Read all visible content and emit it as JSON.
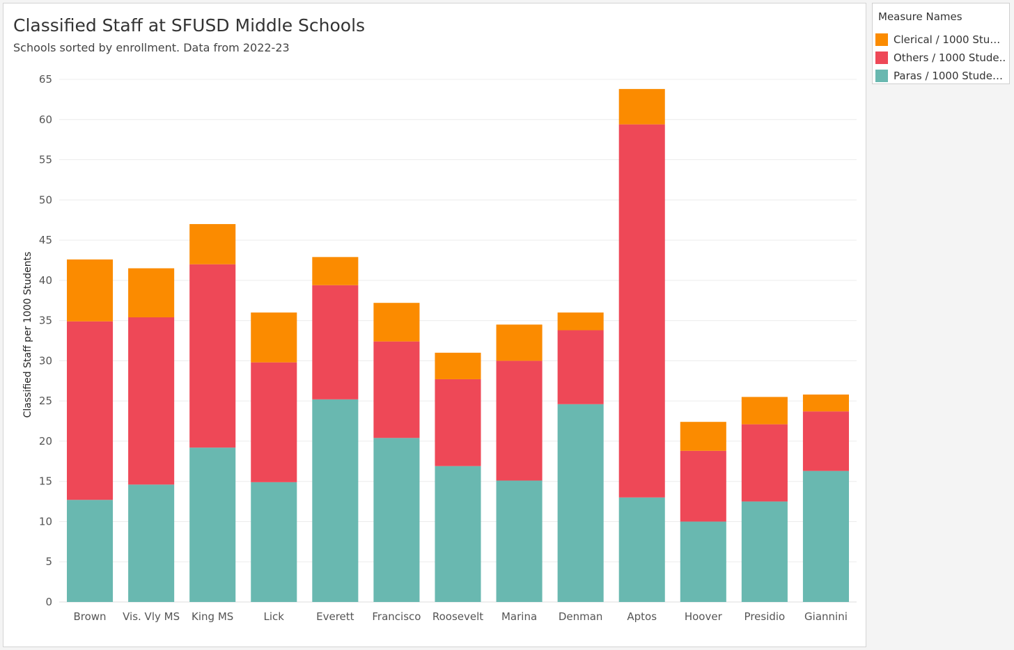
{
  "colors": {
    "clerical": "#fb8b00",
    "others": "#ee4857",
    "paras": "#69b8b0",
    "grid": "#ececec",
    "axis_text": "#555555"
  },
  "chart_data": {
    "type": "bar",
    "stacked": true,
    "title": "Classified Staff at SFUSD Middle Schools",
    "subtitle": "Schools sorted by enrollment. Data from 2022-23",
    "xlabel": "",
    "ylabel": "Classified Staff per 1000 Students",
    "ylim": [
      0,
      65
    ],
    "yticks": [
      0,
      5,
      10,
      15,
      20,
      25,
      30,
      35,
      40,
      45,
      50,
      55,
      60,
      65
    ],
    "grid": true,
    "legend_position": "right",
    "categories": [
      "Brown",
      "Vis. Vly MS",
      "King MS",
      "Lick",
      "Everett",
      "Francisco",
      "Roosevelt",
      "Marina",
      "Denman",
      "Aptos",
      "Hoover",
      "Presidio",
      "Giannini"
    ],
    "series": [
      {
        "name": "Paras / 1000 Students",
        "color_key": "paras",
        "values": [
          12.7,
          14.6,
          19.2,
          14.9,
          25.2,
          20.4,
          16.9,
          15.1,
          24.6,
          13.0,
          10.0,
          12.5,
          16.3
        ]
      },
      {
        "name": "Others / 1000 Students",
        "color_key": "others",
        "values": [
          22.2,
          20.8,
          22.8,
          14.9,
          14.2,
          12.0,
          10.8,
          14.9,
          9.2,
          46.4,
          8.8,
          9.6,
          7.4
        ]
      },
      {
        "name": "Clerical / 1000 Students",
        "color_key": "clerical",
        "values": [
          7.7,
          6.1,
          5.0,
          6.2,
          3.5,
          4.8,
          3.3,
          4.5,
          2.2,
          4.4,
          3.6,
          3.4,
          2.1
        ]
      }
    ]
  },
  "legend": {
    "title": "Measure Names",
    "items": [
      {
        "label": "Clerical / 1000 Stude..",
        "color_key": "clerical"
      },
      {
        "label": "Others / 1000 Stude..",
        "color_key": "others"
      },
      {
        "label": "Paras / 1000 Students",
        "color_key": "paras"
      }
    ]
  }
}
